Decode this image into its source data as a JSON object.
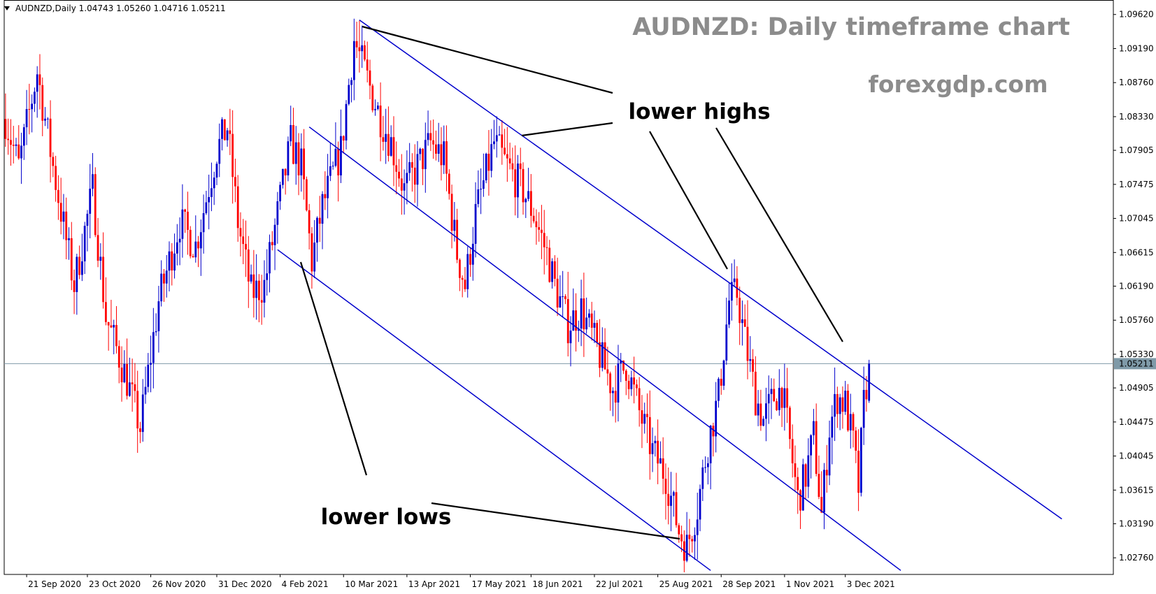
{
  "header": {
    "symbol": "AUDNZD,Daily",
    "open": "1.04743",
    "high": "1.05260",
    "low": "1.04716",
    "close": "1.05211"
  },
  "title": "AUDNZD: Daily timeframe chart",
  "watermark": "forexgdp.com",
  "annotations": {
    "lower_highs": "lower highs",
    "lower_lows": "lower lows"
  },
  "current_price_label": "1.05211",
  "colors": {
    "bull": "#0000cc",
    "bear": "#ff0000",
    "channel": "#0000cc",
    "price_line": "#7f9aa8",
    "title": "#8c8c8c"
  },
  "chart_data": {
    "type": "candlestick",
    "symbol": "AUDNZD",
    "timeframe": "Daily",
    "title": "AUDNZD: Daily timeframe chart",
    "ylim": [
      1.0255,
      1.0975
    ],
    "y_ticks": [
      "1.09620",
      "1.09190",
      "1.08760",
      "1.08330",
      "1.07905",
      "1.07475",
      "1.07045",
      "1.06615",
      "1.06190",
      "1.05760",
      "1.05330",
      "1.04905",
      "1.04475",
      "1.04045",
      "1.03615",
      "1.03190",
      "1.02760"
    ],
    "x_ticks": [
      "21 Sep 2020",
      "23 Oct 2020",
      "26 Nov 2020",
      "31 Dec 2020",
      "4 Feb 2021",
      "10 Mar 2021",
      "13 Apr 2021",
      "17 May 2021",
      "18 Jun 2021",
      "22 Jul 2021",
      "25 Aug 2021",
      "28 Sep 2021",
      "1 Nov 2021",
      "3 Dec 2021"
    ],
    "last_close": 1.05211,
    "swing_path": [
      [
        0,
        1.083
      ],
      [
        5,
        1.077
      ],
      [
        12,
        1.089
      ],
      [
        18,
        1.077
      ],
      [
        26,
        1.062
      ],
      [
        33,
        1.074
      ],
      [
        38,
        1.058
      ],
      [
        46,
        1.05
      ],
      [
        51,
        1.044
      ],
      [
        58,
        1.06
      ],
      [
        66,
        1.07
      ],
      [
        72,
        1.067
      ],
      [
        80,
        1.079
      ],
      [
        84,
        1.082
      ],
      [
        88,
        1.07
      ],
      [
        93,
        1.061
      ],
      [
        98,
        1.062
      ],
      [
        103,
        1.071
      ],
      [
        108,
        1.08
      ],
      [
        112,
        1.077
      ],
      [
        116,
        1.065
      ],
      [
        120,
        1.072
      ],
      [
        127,
        1.079
      ],
      [
        132,
        1.093
      ],
      [
        136,
        1.089
      ],
      [
        141,
        1.084
      ],
      [
        146,
        1.08
      ],
      [
        151,
        1.074
      ],
      [
        156,
        1.077
      ],
      [
        161,
        1.08
      ],
      [
        166,
        1.078
      ],
      [
        171,
        1.066
      ],
      [
        174,
        1.062
      ],
      [
        178,
        1.071
      ],
      [
        185,
        1.08
      ],
      [
        190,
        1.077
      ],
      [
        196,
        1.074
      ],
      [
        200,
        1.071
      ],
      [
        205,
        1.066
      ],
      [
        208,
        1.062
      ],
      [
        213,
        1.057
      ],
      [
        218,
        1.059
      ],
      [
        224,
        1.054
      ],
      [
        230,
        1.049
      ],
      [
        235,
        1.052
      ],
      [
        240,
        1.046
      ],
      [
        245,
        1.041
      ],
      [
        250,
        1.038
      ],
      [
        255,
        1.031
      ],
      [
        258,
        1.029
      ],
      [
        262,
        1.034
      ],
      [
        266,
        1.042
      ],
      [
        270,
        1.048
      ],
      [
        274,
        1.06
      ],
      [
        277,
        1.061
      ],
      [
        280,
        1.055
      ],
      [
        284,
        1.048
      ],
      [
        287,
        1.045
      ],
      [
        291,
        1.048
      ],
      [
        294,
        1.049
      ],
      [
        297,
        1.042
      ],
      [
        300,
        1.035
      ],
      [
        303,
        1.038
      ],
      [
        306,
        1.043
      ],
      [
        309,
        1.033
      ],
      [
        312,
        1.044
      ],
      [
        315,
        1.048
      ],
      [
        318,
        1.047
      ],
      [
        321,
        1.042
      ],
      [
        323,
        1.0365
      ],
      [
        325,
        1.047
      ],
      [
        327,
        1.0521
      ]
    ],
    "channel_lines": [
      [
        [
          134,
          1.0955
        ],
        [
          400,
          1.0325
        ]
      ],
      [
        [
          115,
          1.082
        ],
        [
          339,
          1.026
        ]
      ],
      [
        [
          103,
          1.0665
        ],
        [
          267,
          1.026
        ]
      ]
    ]
  }
}
